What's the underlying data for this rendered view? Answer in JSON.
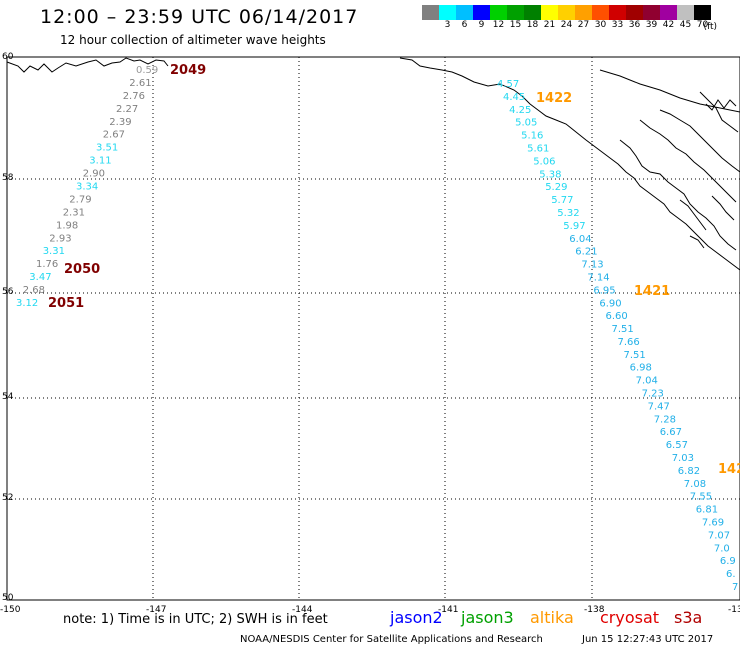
{
  "header": {
    "title": "12:00 – 23:59 UTC 06/14/2017",
    "subtitle": "12 hour collection of altimeter wave heights"
  },
  "legend": {
    "colors": [
      "#808080",
      "#00ffff",
      "#00bfff",
      "#0000ff",
      "#00d000",
      "#00a000",
      "#008000",
      "#ffff00",
      "#ffd000",
      "#ffa000",
      "#ff5000",
      "#d00000",
      "#a00000",
      "#900030",
      "#a000a0",
      "#c0c0c0",
      "#000000"
    ],
    "labels": [
      "",
      "3",
      "6",
      "9",
      "12",
      "15",
      "18",
      "21",
      "24",
      "27",
      "30",
      "33",
      "36",
      "39",
      "42",
      "45",
      "70"
    ],
    "unit": "(ft)"
  },
  "axes": {
    "lon_labels": [
      "-150",
      "-147",
      "-144",
      "-141",
      "-138",
      "-135"
    ],
    "lat_labels": [
      "60",
      "58",
      "56",
      "54",
      "52",
      "50"
    ]
  },
  "passes": [
    {
      "label": "2049",
      "color": "#800000"
    },
    {
      "label": "2050",
      "color": "#800000"
    },
    {
      "label": "2051",
      "color": "#800000"
    },
    {
      "label": "1422",
      "color": "#ff9900"
    },
    {
      "label": "1421",
      "color": "#ff9900"
    },
    {
      "label": "142",
      "color": "#ff9900"
    }
  ],
  "track_west": [
    {
      "v": "0.59",
      "c": "#999999"
    },
    {
      "v": "2.61",
      "c": "#808080"
    },
    {
      "v": "2.76",
      "c": "#808080"
    },
    {
      "v": "2.27",
      "c": "#808080"
    },
    {
      "v": "2.39",
      "c": "#808080"
    },
    {
      "v": "2.67",
      "c": "#808080"
    },
    {
      "v": "3.51",
      "c": "#22d8f0"
    },
    {
      "v": "3.11",
      "c": "#22d8f0"
    },
    {
      "v": "2.90",
      "c": "#808080"
    },
    {
      "v": "3.34",
      "c": "#22d8f0"
    },
    {
      "v": "2.79",
      "c": "#808080"
    },
    {
      "v": "2.31",
      "c": "#808080"
    },
    {
      "v": "1.98",
      "c": "#808080"
    },
    {
      "v": "2.93",
      "c": "#808080"
    },
    {
      "v": "3.31",
      "c": "#22d8f0"
    },
    {
      "v": "1.76",
      "c": "#808080"
    },
    {
      "v": "3.47",
      "c": "#22d8f0"
    },
    {
      "v": "2.68",
      "c": "#808080"
    },
    {
      "v": "3.12",
      "c": "#22d8f0"
    }
  ],
  "track_east": [
    {
      "v": "4.57",
      "c": "#22d8f0"
    },
    {
      "v": "4.45",
      "c": "#22d8f0"
    },
    {
      "v": "4.25",
      "c": "#22d8f0"
    },
    {
      "v": "5.05",
      "c": "#22d8f0"
    },
    {
      "v": "5.16",
      "c": "#22d8f0"
    },
    {
      "v": "5.61",
      "c": "#22d8f0"
    },
    {
      "v": "5.06",
      "c": "#22d8f0"
    },
    {
      "v": "5.38",
      "c": "#22d8f0"
    },
    {
      "v": "5.29",
      "c": "#22d8f0"
    },
    {
      "v": "5.77",
      "c": "#22d8f0"
    },
    {
      "v": "5.32",
      "c": "#22d8f0"
    },
    {
      "v": "5.97",
      "c": "#22d8f0"
    },
    {
      "v": "6.04",
      "c": "#22b0e8"
    },
    {
      "v": "6.21",
      "c": "#22b0e8"
    },
    {
      "v": "7.13",
      "c": "#22b0e8"
    },
    {
      "v": "7.14",
      "c": "#22b0e8"
    },
    {
      "v": "6.95",
      "c": "#22b0e8"
    },
    {
      "v": "6.90",
      "c": "#22b0e8"
    },
    {
      "v": "6.60",
      "c": "#22b0e8"
    },
    {
      "v": "7.51",
      "c": "#22b0e8"
    },
    {
      "v": "7.66",
      "c": "#22b0e8"
    },
    {
      "v": "7.51",
      "c": "#22b0e8"
    },
    {
      "v": "6.98",
      "c": "#22b0e8"
    },
    {
      "v": "7.04",
      "c": "#22b0e8"
    },
    {
      "v": "7.23",
      "c": "#22b0e8"
    },
    {
      "v": "7.47",
      "c": "#22b0e8"
    },
    {
      "v": "7.28",
      "c": "#22b0e8"
    },
    {
      "v": "6.67",
      "c": "#22b0e8"
    },
    {
      "v": "6.57",
      "c": "#22b0e8"
    },
    {
      "v": "7.03",
      "c": "#22b0e8"
    },
    {
      "v": "6.82",
      "c": "#22b0e8"
    },
    {
      "v": "7.08",
      "c": "#22b0e8"
    },
    {
      "v": "7.55",
      "c": "#22b0e8"
    },
    {
      "v": "6.81",
      "c": "#22b0e8"
    },
    {
      "v": "7.69",
      "c": "#22b0e8"
    },
    {
      "v": "7.07",
      "c": "#22b0e8"
    },
    {
      "v": "7.0",
      "c": "#22b0e8"
    },
    {
      "v": "6.9",
      "c": "#22b0e8"
    },
    {
      "v": "6.",
      "c": "#22b0e8"
    },
    {
      "v": "7",
      "c": "#22b0e8"
    }
  ],
  "footer": {
    "note": "note:  1) Time is in UTC;  2) SWH is in feet",
    "satellites": [
      {
        "name": "jason2",
        "color": "#0000ff"
      },
      {
        "name": "jason3",
        "color": "#00a000"
      },
      {
        "name": "altika",
        "color": "#ff9900"
      },
      {
        "name": "cryosat",
        "color": "#e00000"
      },
      {
        "name": "s3a",
        "color": "#b00000"
      }
    ],
    "credit": "NOAA/NESDIS Center for Satellite Applications and Research",
    "timestamp": "Jun 15 12:27:43 UTC 2017"
  }
}
